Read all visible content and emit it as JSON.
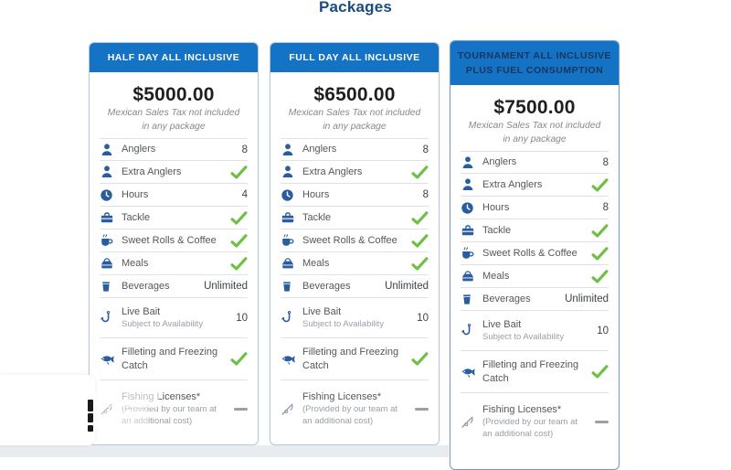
{
  "page_title": "Packages",
  "colors": {
    "header_blue": "#1473c4",
    "title_navy": "#1b4c80",
    "icon_navy": "#2a5d9f",
    "check_green": "#6dbf45",
    "dash_gray": "#9aa0a6"
  },
  "cards": [
    {
      "title_lines": [
        "HALF DAY ALL INCLUSIVE"
      ],
      "price": "$5000.00",
      "tax_note": "Mexican Sales Tax not included in any package",
      "rows": [
        {
          "icon": "angler-icon",
          "label": "Anglers",
          "value": "8"
        },
        {
          "icon": "angler-icon",
          "label": "Extra Anglers",
          "value": "check"
        },
        {
          "icon": "clock-icon",
          "label": "Hours",
          "value": "4"
        },
        {
          "icon": "tackle-icon",
          "label": "Tackle",
          "value": "check"
        },
        {
          "icon": "coffee-icon",
          "label": "Sweet Rolls & Coffee",
          "value": "check"
        },
        {
          "icon": "meals-icon",
          "label": "Meals",
          "value": "check"
        },
        {
          "icon": "beverage-icon",
          "label": "Beverages",
          "value": "Unlimited"
        },
        {
          "icon": "hook-icon",
          "label": "Live Bait",
          "sub": "Subject to Availability",
          "value": "10"
        },
        {
          "icon": "fish-icon",
          "label": "Filleting and Freezing Catch",
          "value": "check"
        },
        {
          "icon": "rod-icon",
          "label": "Fishing Licenses*",
          "sub": "(Provided by our team at an additional cost)",
          "value": "dash"
        }
      ]
    },
    {
      "title_lines": [
        "FULL DAY ALL INCLUSIVE"
      ],
      "price": "$6500.00",
      "tax_note": "Mexican Sales Tax not included in any package",
      "rows": [
        {
          "icon": "angler-icon",
          "label": "Anglers",
          "value": "8"
        },
        {
          "icon": "angler-icon",
          "label": "Extra Anglers",
          "value": "check"
        },
        {
          "icon": "clock-icon",
          "label": "Hours",
          "value": "8"
        },
        {
          "icon": "tackle-icon",
          "label": "Tackle",
          "value": "check"
        },
        {
          "icon": "coffee-icon",
          "label": "Sweet Rolls & Coffee",
          "value": "check"
        },
        {
          "icon": "meals-icon",
          "label": "Meals",
          "value": "check"
        },
        {
          "icon": "beverage-icon",
          "label": "Beverages",
          "value": "Unlimited"
        },
        {
          "icon": "hook-icon",
          "label": "Live Bait",
          "sub": "Subject to Availability",
          "value": "10"
        },
        {
          "icon": "fish-icon",
          "label": "Filleting and Freezing Catch",
          "value": "check"
        },
        {
          "icon": "rod-icon",
          "label": "Fishing Licenses*",
          "sub": "(Provided by our team at an additional cost)",
          "value": "dash"
        }
      ]
    },
    {
      "title_lines": [
        "TOURNAMENT ALL INCLUSIVE",
        "PLUS FUEL CONSUMPTION"
      ],
      "price": "$7500.00",
      "tax_note": "Mexican Sales Tax not included in any package",
      "rows": [
        {
          "icon": "angler-icon",
          "label": "Anglers",
          "value": "8"
        },
        {
          "icon": "angler-icon",
          "label": "Extra Anglers",
          "value": "check"
        },
        {
          "icon": "clock-icon",
          "label": "Hours",
          "value": "8"
        },
        {
          "icon": "tackle-icon",
          "label": "Tackle",
          "value": "check"
        },
        {
          "icon": "coffee-icon",
          "label": "Sweet Rolls & Coffee",
          "value": "check"
        },
        {
          "icon": "meals-icon",
          "label": "Meals",
          "value": "check"
        },
        {
          "icon": "beverage-icon",
          "label": "Beverages",
          "value": "Unlimited"
        },
        {
          "icon": "hook-icon",
          "label": "Live Bait",
          "sub": "Subject to Availability",
          "value": "10"
        },
        {
          "icon": "fish-icon",
          "label": "Filleting and Freezing Catch",
          "value": "check"
        },
        {
          "icon": "rod-icon",
          "label": "Fishing Licenses*",
          "sub": "(Provided by our team at an additional cost)",
          "value": "dash"
        }
      ]
    }
  ]
}
